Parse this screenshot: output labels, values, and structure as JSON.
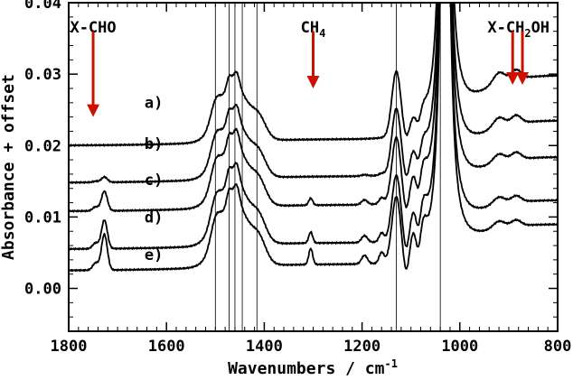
{
  "chart_data": {
    "type": "line",
    "xlabel": "Wavenumbers / cm",
    "xlabel_superscript": "-1",
    "ylabel": "Absorbance + offset",
    "xlim": [
      1800,
      800
    ],
    "ylim": [
      -0.006,
      0.04
    ],
    "x_ticks": [
      1800,
      1600,
      1400,
      1200,
      1000,
      800
    ],
    "y_ticks": [
      0.0,
      0.01,
      0.02,
      0.03,
      0.04
    ],
    "y_tick_labels": [
      "0.00",
      "0.01",
      "0.02",
      "0.03",
      "0.04"
    ],
    "x_minor_step": 20,
    "y_minor_step": 0.002,
    "reference_lines": [
      1500,
      1472,
      1460,
      1445,
      1415,
      1130,
      1040
    ],
    "annotations": [
      {
        "label": "X-CHO",
        "x": 1750,
        "arrow_from": 0.036,
        "arrow_to": 0.024
      },
      {
        "label": "CH",
        "subscript": "4",
        "x": 1300,
        "arrow_from": 0.036,
        "arrow_to": 0.028
      },
      {
        "label": "X-CH",
        "subscript": "2",
        "suffix": "OH",
        "x": 880,
        "arrow_from": 0.036,
        "arrow_to": 0.0285,
        "arrow_xs": [
          892,
          872
        ]
      }
    ],
    "series": [
      {
        "name": "a)",
        "offset": 0.02,
        "label_x": 1645,
        "label_y": 0.0253,
        "peak_scale": 0.85,
        "aldehyde_scale": 0.0,
        "c1300_scale": 0.0,
        "dip_scale": 0.5,
        "ch2oh_scale": 1.3
      },
      {
        "name": "b)",
        "offset": 0.0148,
        "label_x": 1645,
        "label_y": 0.0195,
        "peak_scale": 0.9,
        "aldehyde_scale": 0.15,
        "c1300_scale": 0.0,
        "dip_scale": 0.7,
        "ch2oh_scale": 1.15
      },
      {
        "name": "c)",
        "offset": 0.0108,
        "label_x": 1645,
        "label_y": 0.0145,
        "peak_scale": 0.95,
        "aldehyde_scale": 0.55,
        "c1300_scale": 0.35,
        "dip_scale": 0.9,
        "ch2oh_scale": 1.0
      },
      {
        "name": "d)",
        "offset": 0.0055,
        "label_x": 1645,
        "label_y": 0.0092,
        "peak_scale": 1.0,
        "aldehyde_scale": 0.8,
        "c1300_scale": 0.55,
        "dip_scale": 1.0,
        "ch2oh_scale": 0.9
      },
      {
        "name": "e)",
        "offset": 0.0025,
        "label_x": 1645,
        "label_y": 0.004,
        "peak_scale": 1.0,
        "aldehyde_scale": 1.0,
        "c1300_scale": 0.8,
        "dip_scale": 1.05,
        "ch2oh_scale": 0.85
      }
    ]
  },
  "colors": {
    "axis": "#000000",
    "curve": "#000000",
    "arrow": "#cc1100"
  }
}
